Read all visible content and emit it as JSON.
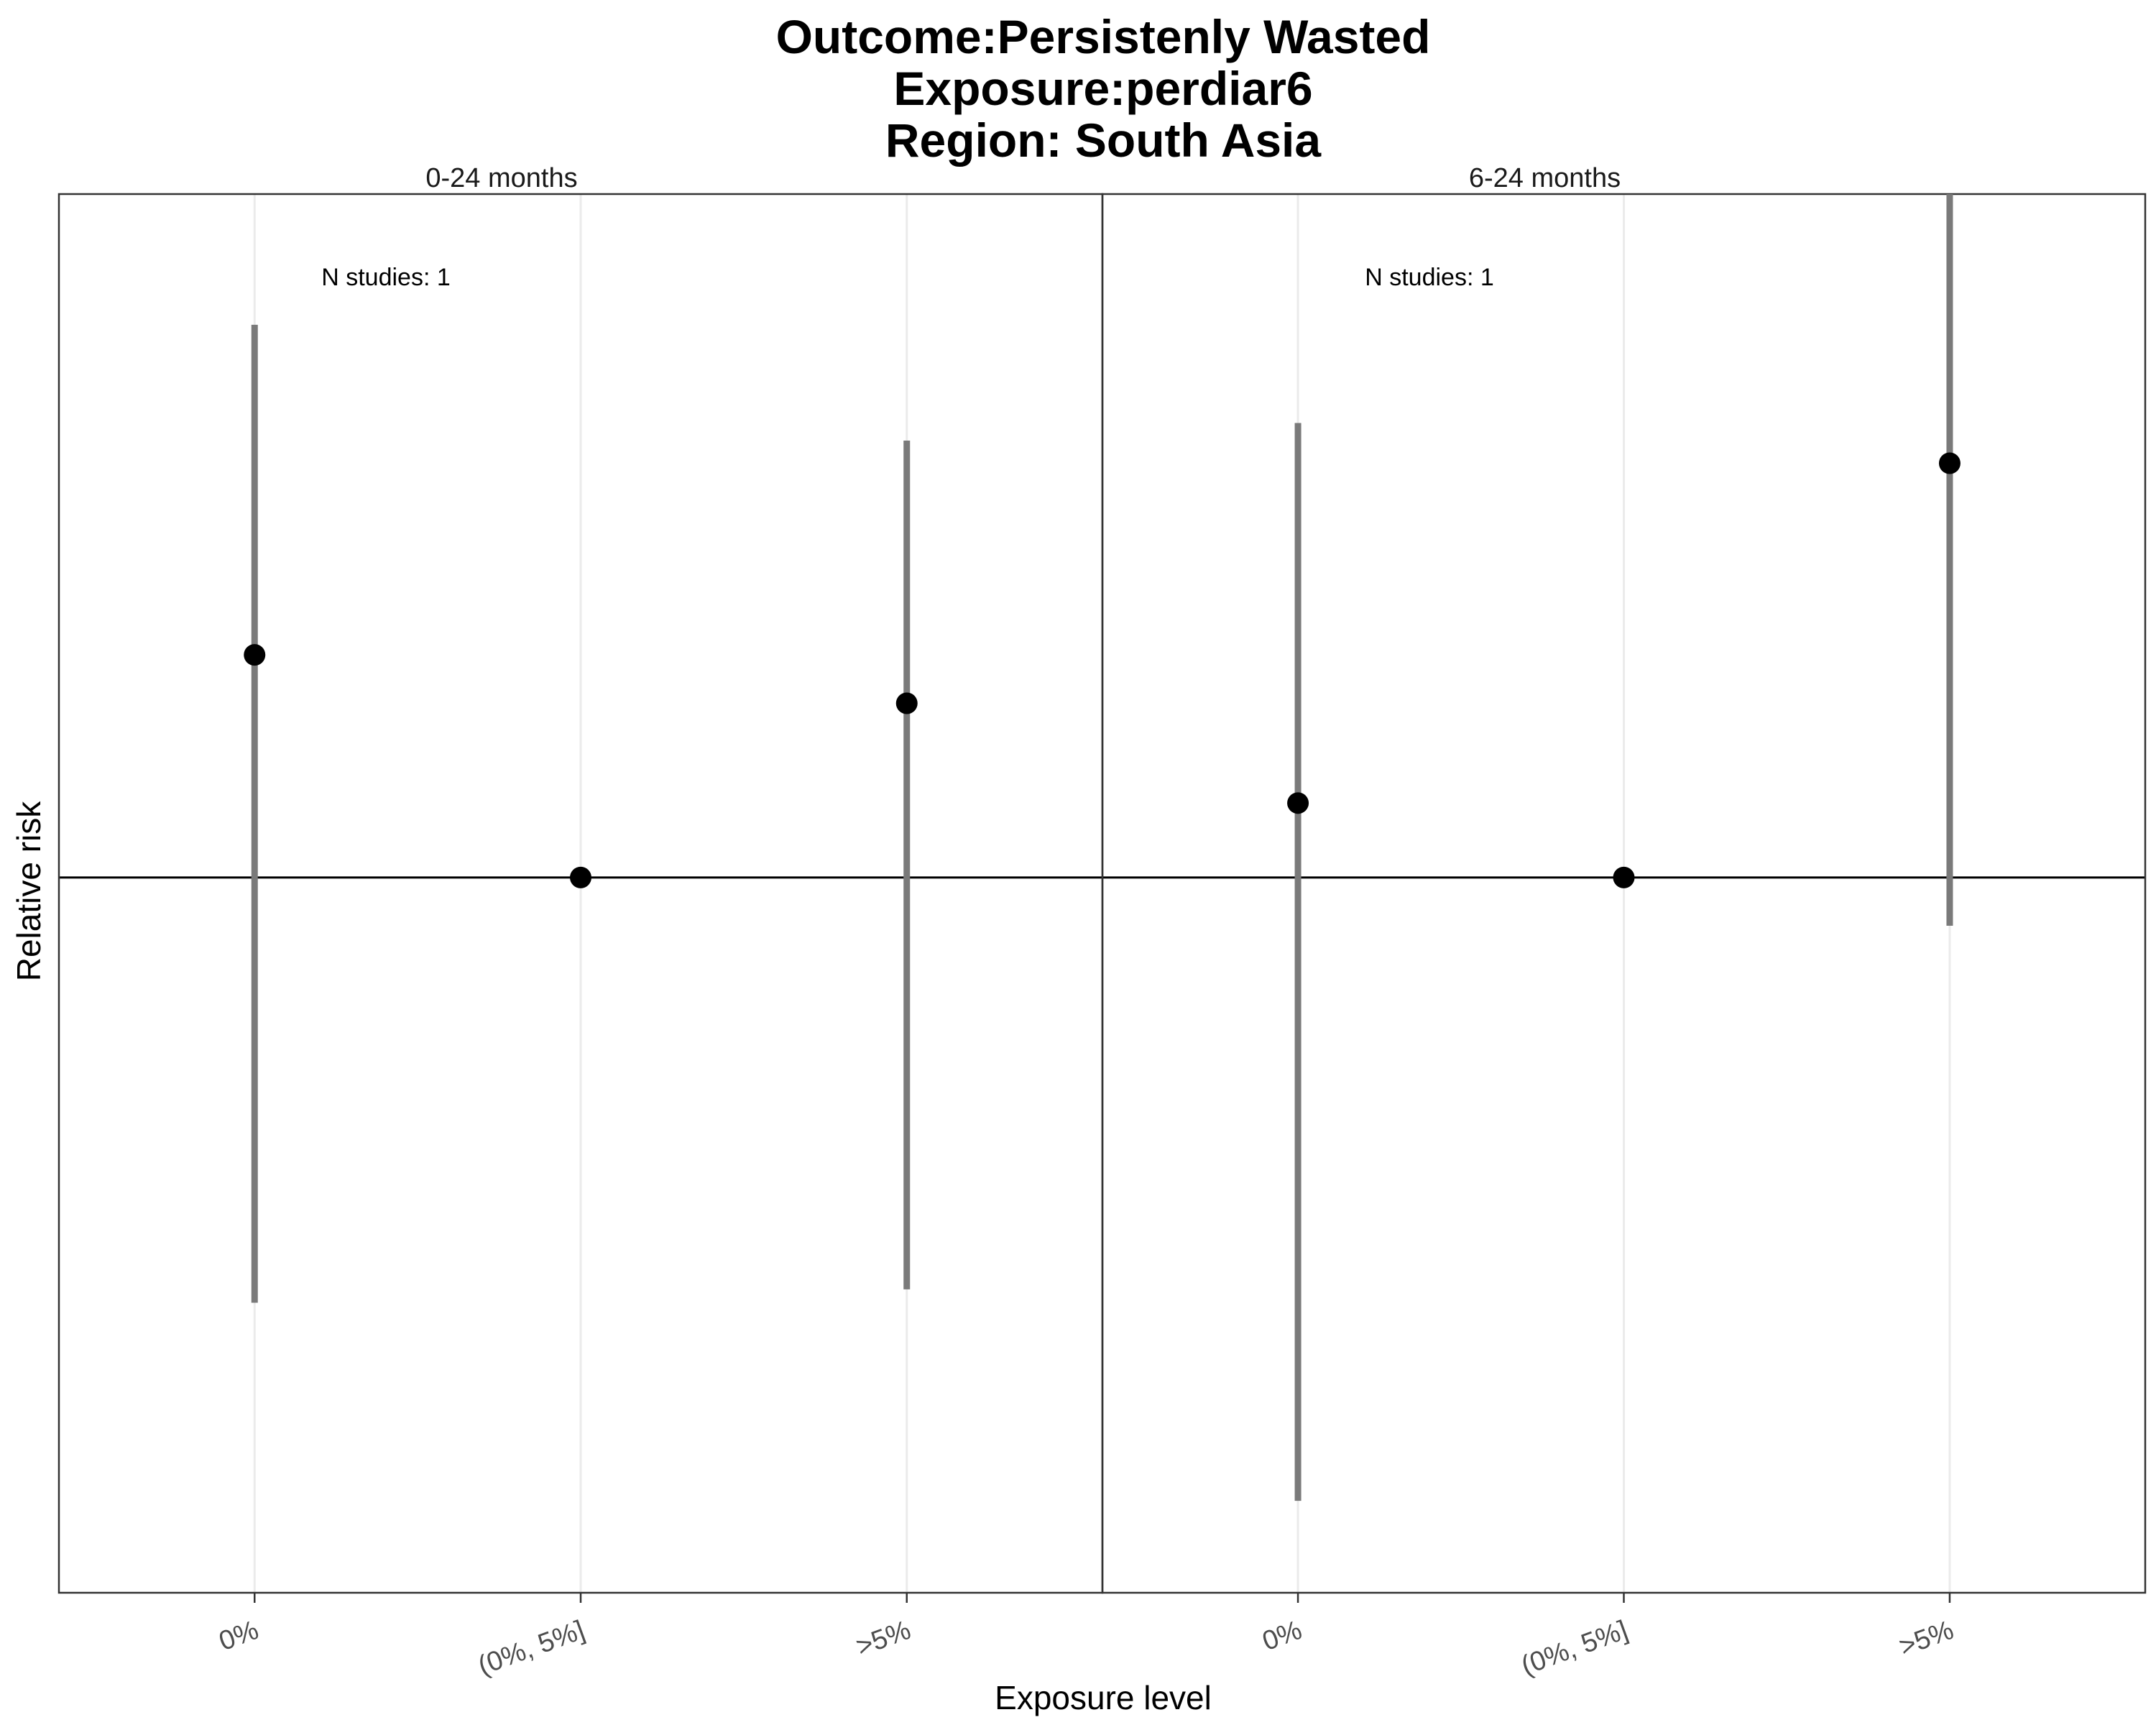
{
  "chart_data": {
    "type": "scatter",
    "subtype": "point-range (faceted)",
    "title": [
      "Outcome:Persistenly Wasted",
      "Exposure:perdiar6",
      "Region: South Asia"
    ],
    "xlabel": "Exposure level",
    "ylabel": "Relative risk",
    "categories": [
      "0%",
      "(0%, 5%]",
      ">5%"
    ],
    "reference_line": 1,
    "ylim": [
      0.4,
      2.4
    ],
    "y_scale": "log",
    "grid": "vertical major lines only",
    "facets": [
      {
        "label": "0-24 months",
        "annotation": "N studies: 1",
        "points": [
          {
            "category": "0%",
            "estimate": 1.33,
            "lower": 0.58,
            "upper": 2.03
          },
          {
            "category": "(0%, 5%]",
            "estimate": 1.0,
            "lower": 1.0,
            "upper": 1.0
          },
          {
            "category": ">5%",
            "estimate": 1.25,
            "lower": 0.59,
            "upper": 1.75
          }
        ]
      },
      {
        "label": "6-24 months",
        "annotation": "N studies: 1",
        "points": [
          {
            "category": "0%",
            "estimate": 1.1,
            "lower": 0.45,
            "upper": 1.79
          },
          {
            "category": "(0%, 5%]",
            "estimate": 1.0,
            "lower": 1.0,
            "upper": 1.0
          },
          {
            "category": ">5%",
            "estimate": 1.7,
            "lower": 0.94,
            "upper": 2.4
          }
        ]
      }
    ]
  }
}
